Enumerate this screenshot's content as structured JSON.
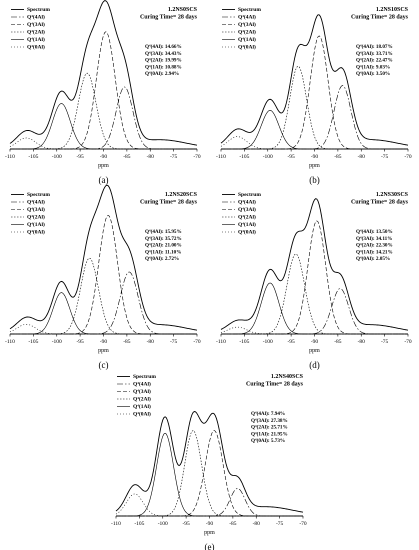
{
  "chart_data": [
    {
      "type": "line",
      "label": "(a)",
      "sample": "1.2NS0SCS",
      "curing": "Curing Time= 28 days",
      "xlabel": "ppm",
      "xlim": [
        -110,
        -70
      ],
      "x_ticks": [
        -110,
        -105,
        -100,
        -95,
        -90,
        -85,
        -80,
        -75,
        -70
      ],
      "legend": [
        "Spectrum",
        "Q⁴(4Al)",
        "Q⁴(3Al)",
        "Q⁴(2Al)",
        "Q⁴(1Al)",
        "Q⁴(0Al)"
      ],
      "quant": [
        "Q⁴(4Al): 14.66%",
        "Q⁴(3Al): 34.43%",
        "Q⁴(2Al): 19.99%",
        "Q⁴(1Al): 10.88%",
        "Q⁴(0Al): 2.94%"
      ],
      "series": [
        {
          "name": "Q⁴(4Al)",
          "center": -85.5,
          "height": 0.45,
          "width": 1.8
        },
        {
          "name": "Q⁴(3Al)",
          "center": -89.5,
          "height": 0.85,
          "width": 2.0
        },
        {
          "name": "Q⁴(2Al)",
          "center": -93.5,
          "height": 0.55,
          "width": 1.9
        },
        {
          "name": "Q⁴(1Al)",
          "center": -99.0,
          "height": 0.33,
          "width": 1.9
        },
        {
          "name": "Q⁴(0Al)",
          "center": -106.5,
          "height": 0.08,
          "width": 2.0
        }
      ]
    },
    {
      "type": "line",
      "label": "(b)",
      "sample": "1.2NS10SCS",
      "curing": "Curing Time= 28 days",
      "xlabel": "ppm",
      "xlim": [
        -110,
        -70
      ],
      "x_ticks": [
        -110,
        -105,
        -100,
        -95,
        -90,
        -85,
        -80,
        -75,
        -70
      ],
      "legend": [
        "Spectrum",
        "Q⁴(4Al)",
        "Q⁴(3Al)",
        "Q⁴(2Al)",
        "Q⁴(1Al)",
        "Q⁴(0Al)"
      ],
      "quant": [
        "Q⁴(4Al): 18.07%",
        "Q⁴(3Al): 33.71%",
        "Q⁴(2Al): 22.47%",
        "Q⁴(1Al): 9.03%",
        "Q⁴(0Al): 3.50%"
      ],
      "series": [
        {
          "name": "Q⁴(4Al)",
          "center": -84.0,
          "height": 0.46,
          "width": 1.8
        },
        {
          "name": "Q⁴(3Al)",
          "center": -89.0,
          "height": 0.82,
          "width": 1.9
        },
        {
          "name": "Q⁴(2Al)",
          "center": -93.5,
          "height": 0.6,
          "width": 1.8
        },
        {
          "name": "Q⁴(1Al)",
          "center": -99.5,
          "height": 0.28,
          "width": 1.9
        },
        {
          "name": "Q⁴(0Al)",
          "center": -106.5,
          "height": 0.09,
          "width": 2.0
        }
      ]
    },
    {
      "type": "line",
      "label": "(c)",
      "sample": "1.2NS20SCS",
      "curing": "Curing Time= 28 days",
      "xlabel": "ppm",
      "xlim": [
        -110,
        -70
      ],
      "x_ticks": [
        -110,
        -105,
        -100,
        -95,
        -90,
        -85,
        -80,
        -75,
        -70
      ],
      "legend": [
        "Spectrum",
        "Q⁴(4Al)",
        "Q⁴(3Al)",
        "Q⁴(2Al)",
        "Q⁴(1Al)",
        "Q⁴(0Al)"
      ],
      "quant": [
        "Q⁴(4Al): 15.95%",
        "Q⁴(3Al): 35.72%",
        "Q⁴(2Al): 21.00%",
        "Q⁴(1Al): 11.10%",
        "Q⁴(0Al): 2.72%"
      ],
      "series": [
        {
          "name": "Q⁴(4Al)",
          "center": -84.5,
          "height": 0.45,
          "width": 1.9
        },
        {
          "name": "Q⁴(3Al)",
          "center": -89.0,
          "height": 0.86,
          "width": 2.0
        },
        {
          "name": "Q⁴(2Al)",
          "center": -93.0,
          "height": 0.55,
          "width": 1.9
        },
        {
          "name": "Q⁴(1Al)",
          "center": -99.0,
          "height": 0.3,
          "width": 1.8
        },
        {
          "name": "Q⁴(0Al)",
          "center": -106.5,
          "height": 0.07,
          "width": 2.0
        }
      ]
    },
    {
      "type": "line",
      "label": "(d)",
      "sample": "1.2NS30SCS",
      "curing": "Curing Time= 28 days",
      "xlabel": "ppm",
      "xlim": [
        -110,
        -70
      ],
      "x_ticks": [
        -110,
        -105,
        -100,
        -95,
        -90,
        -85,
        -80,
        -75,
        -70
      ],
      "legend": [
        "Spectrum",
        "Q⁴(4Al)",
        "Q⁴(3Al)",
        "Q⁴(2Al)",
        "Q⁴(1Al)",
        "Q⁴(0Al)"
      ],
      "quant": [
        "Q⁴(4Al): 13.50%",
        "Q⁴(3Al): 34.11%",
        "Q⁴(2Al): 22.30%",
        "Q⁴(1Al): 14.21%",
        "Q⁴(0Al): 2.05%"
      ],
      "series": [
        {
          "name": "Q⁴(4Al)",
          "center": -84.5,
          "height": 0.33,
          "width": 1.8
        },
        {
          "name": "Q⁴(3Al)",
          "center": -89.5,
          "height": 0.82,
          "width": 1.9
        },
        {
          "name": "Q⁴(2Al)",
          "center": -94.0,
          "height": 0.58,
          "width": 1.9
        },
        {
          "name": "Q⁴(1Al)",
          "center": -99.5,
          "height": 0.37,
          "width": 1.9
        },
        {
          "name": "Q⁴(0Al)",
          "center": -106.5,
          "height": 0.05,
          "width": 2.0
        }
      ]
    },
    {
      "type": "line",
      "label": "(e)",
      "sample": "1.2NS40SCS",
      "curing": "Curing Time= 28 days",
      "xlabel": "ppm",
      "xlim": [
        -110,
        -70
      ],
      "x_ticks": [
        -110,
        -105,
        -100,
        -95,
        -90,
        -85,
        -80,
        -75,
        -70
      ],
      "legend": [
        "Spectrum",
        "Q⁴(4Al)",
        "Q⁴(3Al)",
        "Q⁴(2Al)",
        "Q⁴(1Al)",
        "Q⁴(0Al)"
      ],
      "quant": [
        "Q⁴(4Al): 7.94%",
        "Q⁴(3Al): 27.38%",
        "Q⁴(2Al): 25.71%",
        "Q⁴(1Al): 21.95%",
        "Q⁴(0Al): 5.73%"
      ],
      "series": [
        {
          "name": "Q⁴(4Al)",
          "center": -84.0,
          "height": 0.2,
          "width": 1.6
        },
        {
          "name": "Q⁴(3Al)",
          "center": -89.0,
          "height": 0.62,
          "width": 1.9
        },
        {
          "name": "Q⁴(2Al)",
          "center": -93.5,
          "height": 0.62,
          "width": 1.8
        },
        {
          "name": "Q⁴(1Al)",
          "center": -99.5,
          "height": 0.6,
          "width": 1.8
        },
        {
          "name": "Q⁴(0Al)",
          "center": -106.0,
          "height": 0.16,
          "width": 1.8
        }
      ]
    }
  ]
}
